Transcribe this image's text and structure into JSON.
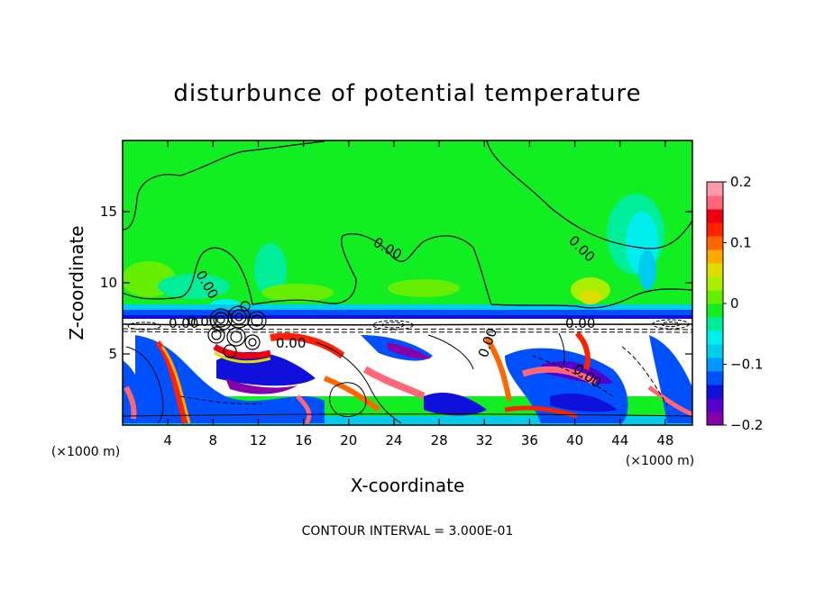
{
  "chart_data": {
    "type": "heatmap",
    "title": "disturbunce of potential temperature",
    "xlabel": "X-coordinate",
    "ylabel": "Z-coordinate",
    "x_unit": "(×1000 m)",
    "x_unit_right": "(×1000 m)",
    "footer": "CONTOUR INTERVAL = 3.000E-01",
    "xlim": [
      0,
      50.4
    ],
    "ylim": [
      0,
      20
    ],
    "x_ticks": [
      4,
      8,
      12,
      16,
      20,
      24,
      28,
      32,
      36,
      40,
      44,
      48
    ],
    "x_tick_labels": [
      "4",
      "8",
      "12",
      "16",
      "20",
      "24",
      "28",
      "32",
      "36",
      "40",
      "44",
      "48"
    ],
    "y_ticks": [
      5,
      10,
      15
    ],
    "y_tick_labels": [
      "5",
      "10",
      "15"
    ],
    "colorbar": {
      "range": [
        -0.2,
        0.2
      ],
      "ticks": [
        0.2,
        0.1,
        0,
        -0.1,
        -0.2
      ],
      "tick_labels": [
        "0.2",
        "0.1",
        "0",
        "−0.1",
        "−0.2"
      ],
      "colors": [
        "#8800aa",
        "#5500cc",
        "#1010dd",
        "#0050ff",
        "#0099ff",
        "#00ccee",
        "#00eeee",
        "#00ee99",
        "#11ee22",
        "#66ee00",
        "#aaee00",
        "#dddd00",
        "#ffaa00",
        "#ff6600",
        "#ff2200",
        "#ee0011",
        "#ff6677",
        "#ff99aa"
      ]
    },
    "contour_labels": [
      "0.00",
      "0.00",
      "0.00",
      "0.00",
      "0.00",
      "0.00",
      "0.00",
      "0.00",
      "0.00"
    ],
    "grid": false,
    "legend": "right"
  }
}
